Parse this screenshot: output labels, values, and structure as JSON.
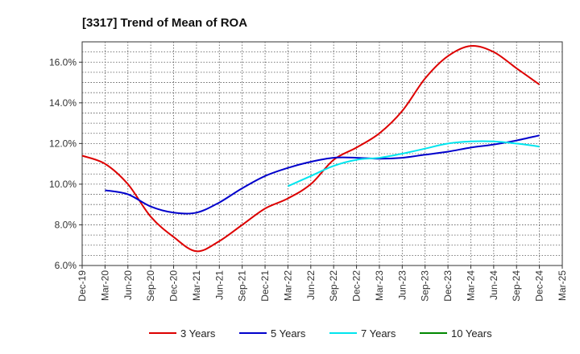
{
  "chart_data": {
    "type": "line",
    "title": "[3317]  Trend of Mean of ROA",
    "xlabel": "",
    "ylabel": "",
    "ylim": [
      6.0,
      17.0
    ],
    "grid": true,
    "legend_position": "bottom",
    "categories": [
      "Dec-19",
      "Mar-20",
      "Jun-20",
      "Sep-20",
      "Dec-20",
      "Mar-21",
      "Jun-21",
      "Sep-21",
      "Dec-21",
      "Mar-22",
      "Jun-22",
      "Sep-22",
      "Dec-22",
      "Mar-23",
      "Jun-23",
      "Sep-23",
      "Dec-23",
      "Mar-24",
      "Jun-24",
      "Sep-24",
      "Dec-24",
      "Mar-25"
    ],
    "y_ticks": [
      {
        "value": 6,
        "label": "6.0%"
      },
      {
        "value": 8,
        "label": "8.0%"
      },
      {
        "value": 10,
        "label": "10.0%"
      },
      {
        "value": 12,
        "label": "12.0%"
      },
      {
        "value": 14,
        "label": "14.0%"
      },
      {
        "value": 16,
        "label": "16.0%"
      }
    ],
    "series": [
      {
        "name": "3 Years",
        "color": "#dd0000",
        "values": [
          11.4,
          11.0,
          10.0,
          8.4,
          7.4,
          6.7,
          7.2,
          8.0,
          8.8,
          9.3,
          10.0,
          11.2,
          11.8,
          12.5,
          13.6,
          15.2,
          16.3,
          16.8,
          16.5,
          15.7,
          14.9,
          null
        ]
      },
      {
        "name": "5 Years",
        "color": "#0000cc",
        "values": [
          null,
          9.7,
          9.5,
          8.9,
          8.6,
          8.6,
          9.1,
          9.8,
          10.4,
          10.8,
          11.1,
          11.3,
          11.3,
          11.25,
          11.3,
          11.45,
          11.6,
          11.8,
          11.95,
          12.15,
          12.4,
          null
        ]
      },
      {
        "name": "7 Years",
        "color": "#00e5ee",
        "values": [
          null,
          null,
          null,
          null,
          null,
          null,
          null,
          null,
          null,
          9.9,
          10.4,
          10.9,
          11.2,
          11.3,
          11.5,
          11.75,
          12.0,
          12.1,
          12.1,
          12.0,
          11.85,
          null
        ]
      },
      {
        "name": "10 Years",
        "color": "#008800",
        "values": [
          null,
          null,
          null,
          null,
          null,
          null,
          null,
          null,
          null,
          null,
          null,
          null,
          null,
          null,
          null,
          null,
          null,
          null,
          null,
          null,
          null,
          null
        ]
      }
    ]
  }
}
